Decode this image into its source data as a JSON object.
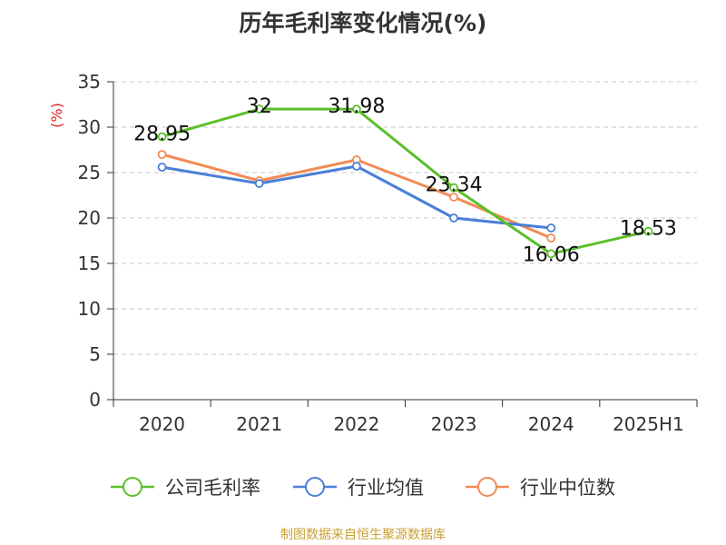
{
  "title": "历年毛利率变化情况(%)",
  "source": "制图数据来自恒生聚源数据库",
  "chart_data": {
    "type": "line",
    "title": "历年毛利率变化情况(%)",
    "ylabel": "(%)",
    "xlabel": "",
    "categories": [
      "2020",
      "2021",
      "2022",
      "2023",
      "2024",
      "2025H1"
    ],
    "ylim": [
      0,
      35
    ],
    "yticks": [
      0,
      5,
      10,
      15,
      20,
      25,
      30,
      35
    ],
    "grid": "horizontal dashed",
    "legend_position": "bottom",
    "series": [
      {
        "name": "公司毛利率",
        "color": "#5cbf2a",
        "values": [
          28.95,
          32,
          31.98,
          23.34,
          16.06,
          18.53
        ],
        "labels": [
          "28.95",
          "32",
          "31.98",
          "23.34",
          "16.06",
          "18.53"
        ]
      },
      {
        "name": "行业均值",
        "color": "#4a7fd8",
        "values": [
          25.6,
          23.8,
          25.7,
          20.0,
          18.9,
          null
        ]
      },
      {
        "name": "行业中位数",
        "color": "#f28b54",
        "values": [
          27.0,
          24.1,
          26.4,
          22.3,
          17.8,
          null
        ]
      }
    ]
  }
}
